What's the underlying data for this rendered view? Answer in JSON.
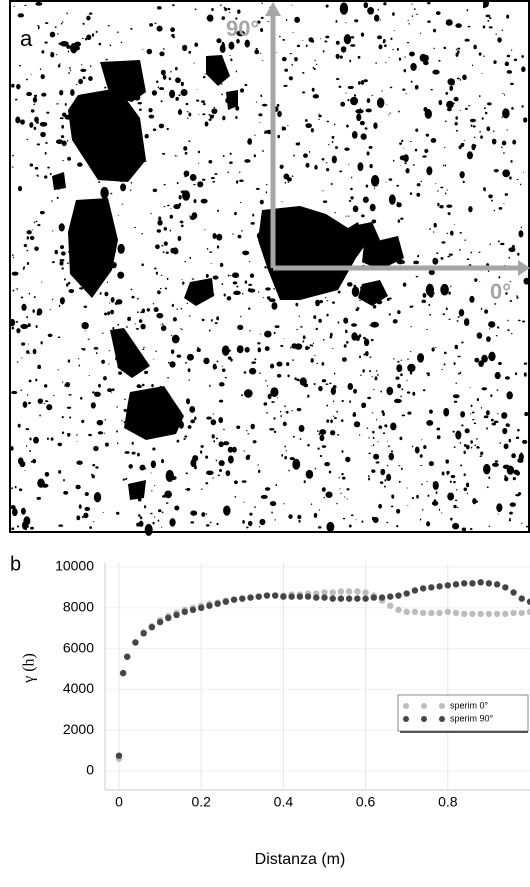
{
  "panel_labels": [
    "a",
    "b"
  ],
  "image": {
    "label_90": "90°",
    "label_0": "0°"
  },
  "chart_data": {
    "type": "scatter",
    "x_label": "Distanza (m)",
    "y_label": "γ (h)",
    "x": [
      0,
      0.01,
      0.02,
      0.04,
      0.06,
      0.08,
      0.1,
      0.12,
      0.14,
      0.16,
      0.18,
      0.2,
      0.22,
      0.24,
      0.26,
      0.28,
      0.3,
      0.32,
      0.34,
      0.36,
      0.38,
      0.4,
      0.42,
      0.44,
      0.46,
      0.48,
      0.5,
      0.52,
      0.54,
      0.56,
      0.58,
      0.6,
      0.62,
      0.64,
      0.66,
      0.68,
      0.7,
      0.72,
      0.74,
      0.76,
      0.78,
      0.8,
      0.82,
      0.84,
      0.86,
      0.88,
      0.9,
      0.92,
      0.94,
      0.96,
      0.98,
      1.0
    ],
    "series": [
      {
        "name": "sperim 0°",
        "color": "#bdbdbd",
        "values": [
          600,
          4800,
          5600,
          6300,
          6800,
          7100,
          7400,
          7600,
          7750,
          7900,
          8000,
          8100,
          8200,
          8250,
          8350,
          8400,
          8450,
          8500,
          8550,
          8600,
          8600,
          8600,
          8650,
          8650,
          8700,
          8700,
          8750,
          8750,
          8800,
          8800,
          8800,
          8750,
          8600,
          8350,
          8100,
          7900,
          7800,
          7800,
          7750,
          7750,
          7750,
          7800,
          7750,
          7700,
          7700,
          7700,
          7700,
          7700,
          7700,
          7750,
          7750,
          7800
        ]
      },
      {
        "name": "sperim 90°",
        "color": "#454545",
        "values": [
          750,
          4800,
          5600,
          6300,
          6750,
          7050,
          7300,
          7500,
          7650,
          7800,
          7900,
          8000,
          8100,
          8200,
          8300,
          8400,
          8450,
          8500,
          8550,
          8600,
          8600,
          8550,
          8550,
          8550,
          8550,
          8500,
          8500,
          8450,
          8450,
          8450,
          8450,
          8450,
          8500,
          8500,
          8550,
          8600,
          8700,
          8850,
          8950,
          9000,
          9050,
          9100,
          9150,
          9200,
          9200,
          9250,
          9200,
          9150,
          9000,
          8750,
          8450,
          8300
        ]
      }
    ],
    "xlim": [
      0,
      1
    ],
    "ylim": [
      0,
      10000
    ],
    "xticks": [
      0,
      0.2,
      0.4,
      0.6,
      0.8
    ],
    "yticks": [
      0,
      2000,
      4000,
      6000,
      8000,
      10000
    ],
    "grid": true,
    "legend": "lower right"
  }
}
